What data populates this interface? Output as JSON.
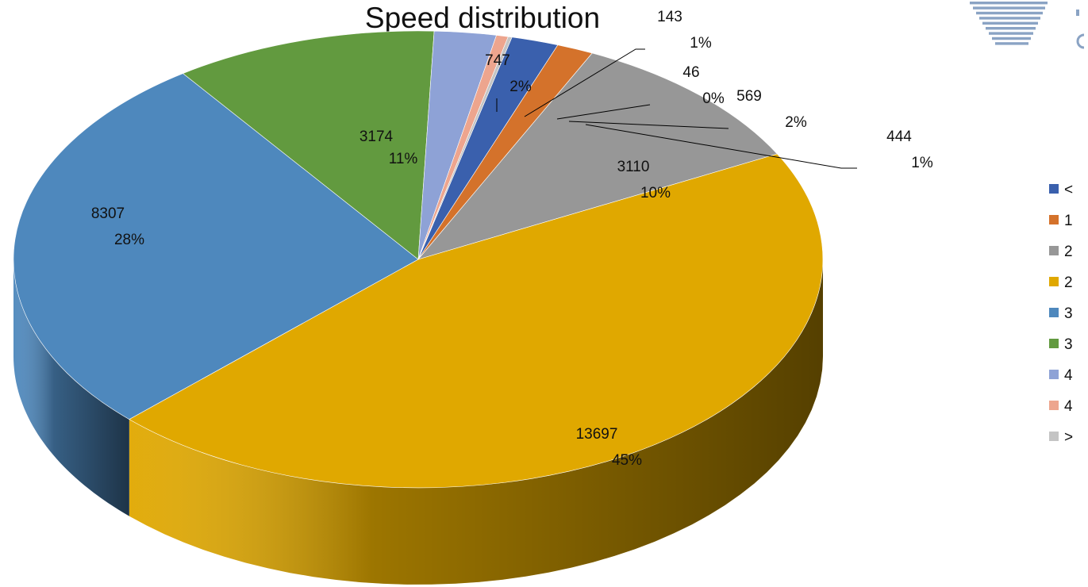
{
  "chart_data": {
    "type": "pie",
    "title": "Speed distribution",
    "style": "3d-tilted",
    "legend_position": "right",
    "slices": [
      {
        "legend": "<",
        "value": 569,
        "percent": "2%",
        "color": "#3a60ad"
      },
      {
        "legend": "1",
        "value": 444,
        "percent": "1%",
        "color": "#d4722b"
      },
      {
        "legend": "2",
        "value": 3110,
        "percent": "10%",
        "color": "#979797"
      },
      {
        "legend": "2",
        "value": 13697,
        "percent": "45%",
        "color": "#e0a800"
      },
      {
        "legend": "3",
        "value": 8307,
        "percent": "28%",
        "color": "#4e88bd"
      },
      {
        "legend": "3",
        "value": 3174,
        "percent": "11%",
        "color": "#629a3f"
      },
      {
        "legend": "4",
        "value": 747,
        "percent": "2%",
        "color": "#8ea2d6"
      },
      {
        "legend": "4",
        "value": 143,
        "percent": "1%",
        "color": "#eda58e"
      },
      {
        "legend": ">",
        "value": 46,
        "percent": "0%",
        "color": "#c4c4c4"
      }
    ]
  },
  "logo": {
    "name": "company-logo",
    "color": "#8aa3c4"
  }
}
